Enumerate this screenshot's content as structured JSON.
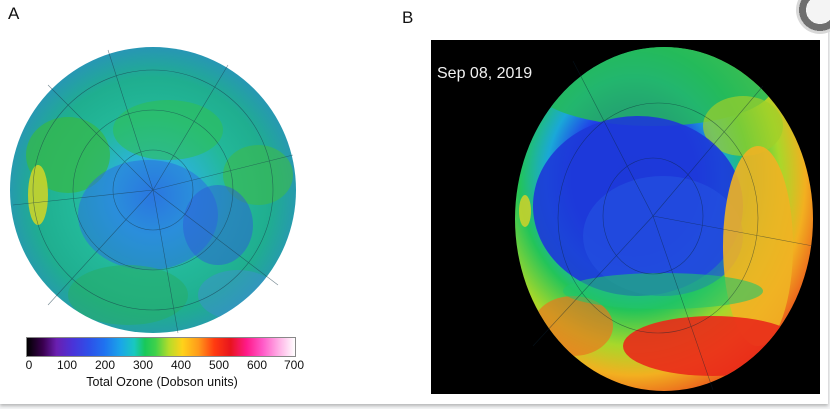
{
  "panels": {
    "a": {
      "label": "A"
    },
    "b": {
      "label": "B",
      "date": "Sep 08, 2019"
    }
  },
  "colorbar": {
    "ticks": [
      "0",
      "100",
      "200",
      "300",
      "400",
      "500",
      "600",
      "700"
    ],
    "title": "Total Ozone (Dobson units)"
  },
  "icons": {
    "corner": "circle-button-icon"
  }
}
